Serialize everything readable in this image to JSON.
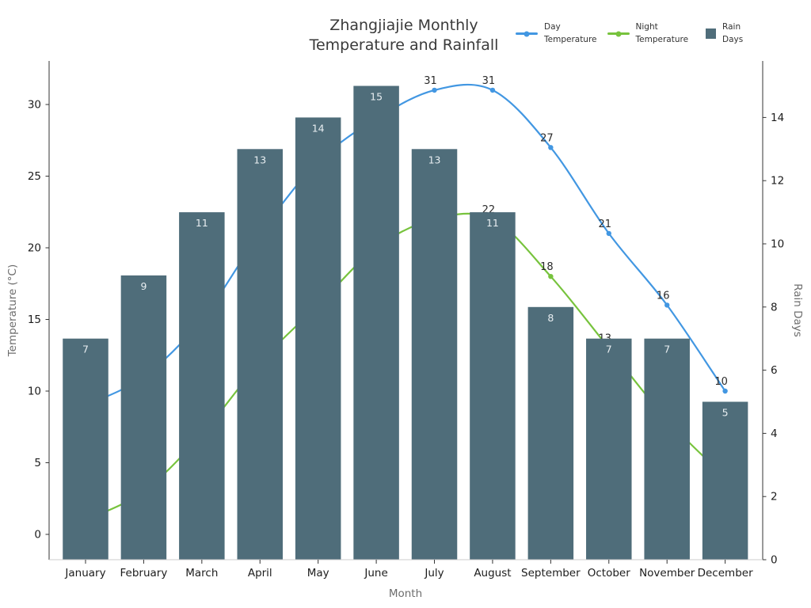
{
  "title": {
    "line1": "Zhangjiajie Monthly",
    "line2": "Temperature and Rainfall"
  },
  "legend": [
    {
      "id": "day",
      "label_line1": "Day",
      "label_line2": "Temperature",
      "color": "#4297e2",
      "marker": "line-with-dot-icon"
    },
    {
      "id": "night",
      "label_line1": "Night",
      "label_line2": "Temperature",
      "color": "#77c33d",
      "marker": "line-with-dot-icon"
    },
    {
      "id": "rain",
      "label_line1": "Rain",
      "label_line2": "Days",
      "color": "#4f6d7a",
      "marker": "square-swatch-icon"
    }
  ],
  "axes": {
    "x_title": "Month",
    "y_left_title": "Temperature (°C)",
    "y_right_title": "Rain Days",
    "y_left_ticks": [
      0,
      5,
      10,
      15,
      20,
      25,
      30
    ],
    "y_right_ticks": [
      0,
      2,
      4,
      6,
      8,
      10,
      12,
      14
    ]
  },
  "colors": {
    "day_line": "#4297e2",
    "night_line": "#77c33d",
    "rain_bar": "#4f6d7a",
    "spine_dark": "#333333",
    "spine_bottom": "#cccccc",
    "title_text": "#3a3a3a",
    "axis_title_text": "#6d6d6d",
    "tick_text": "#1c1c1c",
    "bar_label_text": "#e8eef1"
  },
  "chart_data": {
    "type": "combo-bar-line",
    "title": "Zhangjiajie Monthly Temperature and Rainfall",
    "xlabel": "Month",
    "ylabel_left": "Temperature (°C)",
    "ylabel_right": "Rain Days",
    "ylim_left": [
      -1.8,
      33
    ],
    "ylim_right": [
      0,
      15.8
    ],
    "grid": false,
    "legend_position": "top-right",
    "categories": [
      "January",
      "February",
      "March",
      "April",
      "May",
      "June",
      "July",
      "August",
      "September",
      "October",
      "November",
      "December"
    ],
    "series": [
      {
        "name": "Day Temperature",
        "type": "line",
        "axis": "left",
        "color": "#4297e2",
        "smooth": true,
        "values": [
          9,
          11,
          15,
          21,
          26,
          29,
          31,
          31,
          27,
          21,
          16,
          10
        ],
        "visible_point_labels": [
          {
            "month": "July",
            "value": 31
          },
          {
            "month": "August",
            "value": 31
          },
          {
            "month": "September",
            "value": 27
          },
          {
            "month": "October",
            "value": 21
          },
          {
            "month": "November",
            "value": 16
          },
          {
            "month": "December",
            "value": 10
          }
        ],
        "note": "Jan-Jun points occluded by bars; values estimated from visible curve segments"
      },
      {
        "name": "Night Temperature",
        "type": "line",
        "axis": "left",
        "color": "#77c33d",
        "smooth": true,
        "values": [
          1,
          3,
          7,
          12,
          16,
          20,
          22,
          22,
          18,
          13,
          8,
          4
        ],
        "visible_point_labels": [
          {
            "month": "August",
            "value": 22
          },
          {
            "month": "September",
            "value": 18
          }
        ],
        "note": "Most points occluded by bars; values estimated from visible curve segments"
      },
      {
        "name": "Rain Days",
        "type": "bar",
        "axis": "right",
        "color": "#4f6d7a",
        "values": [
          7,
          9,
          11,
          13,
          14,
          15,
          13,
          11,
          8,
          7,
          7,
          5
        ],
        "bar_labels_visible": true
      }
    ]
  }
}
